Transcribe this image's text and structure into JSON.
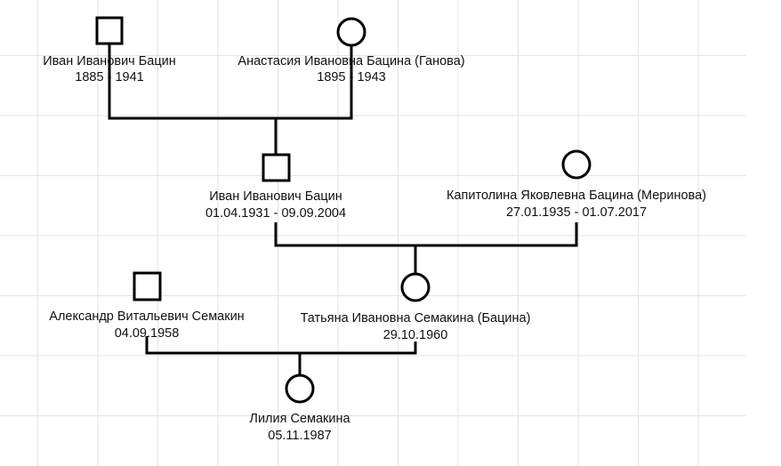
{
  "nodes": [
    {
      "name": "Иван Иванович Бацин",
      "dates": "1885 - 1941"
    },
    {
      "name": "Анастасия Ивановна Бацина (Ганова)",
      "dates": "1895 - 1943"
    },
    {
      "name": "Иван Иванович Бацин",
      "dates": "01.04.1931 - 09.09.2004"
    },
    {
      "name": "Капитолина Яковлевна Бацина (Меринова)",
      "dates": "27.01.1935 - 01.07.2017"
    },
    {
      "name": "Александр Витальевич Семакин",
      "dates": "04.09.1958"
    },
    {
      "name": "Татьяна Ивановна Семакина (Бацина)",
      "dates": "29.10.1960"
    },
    {
      "name": "Лилия Семакина",
      "dates": "05.11.1987"
    }
  ]
}
